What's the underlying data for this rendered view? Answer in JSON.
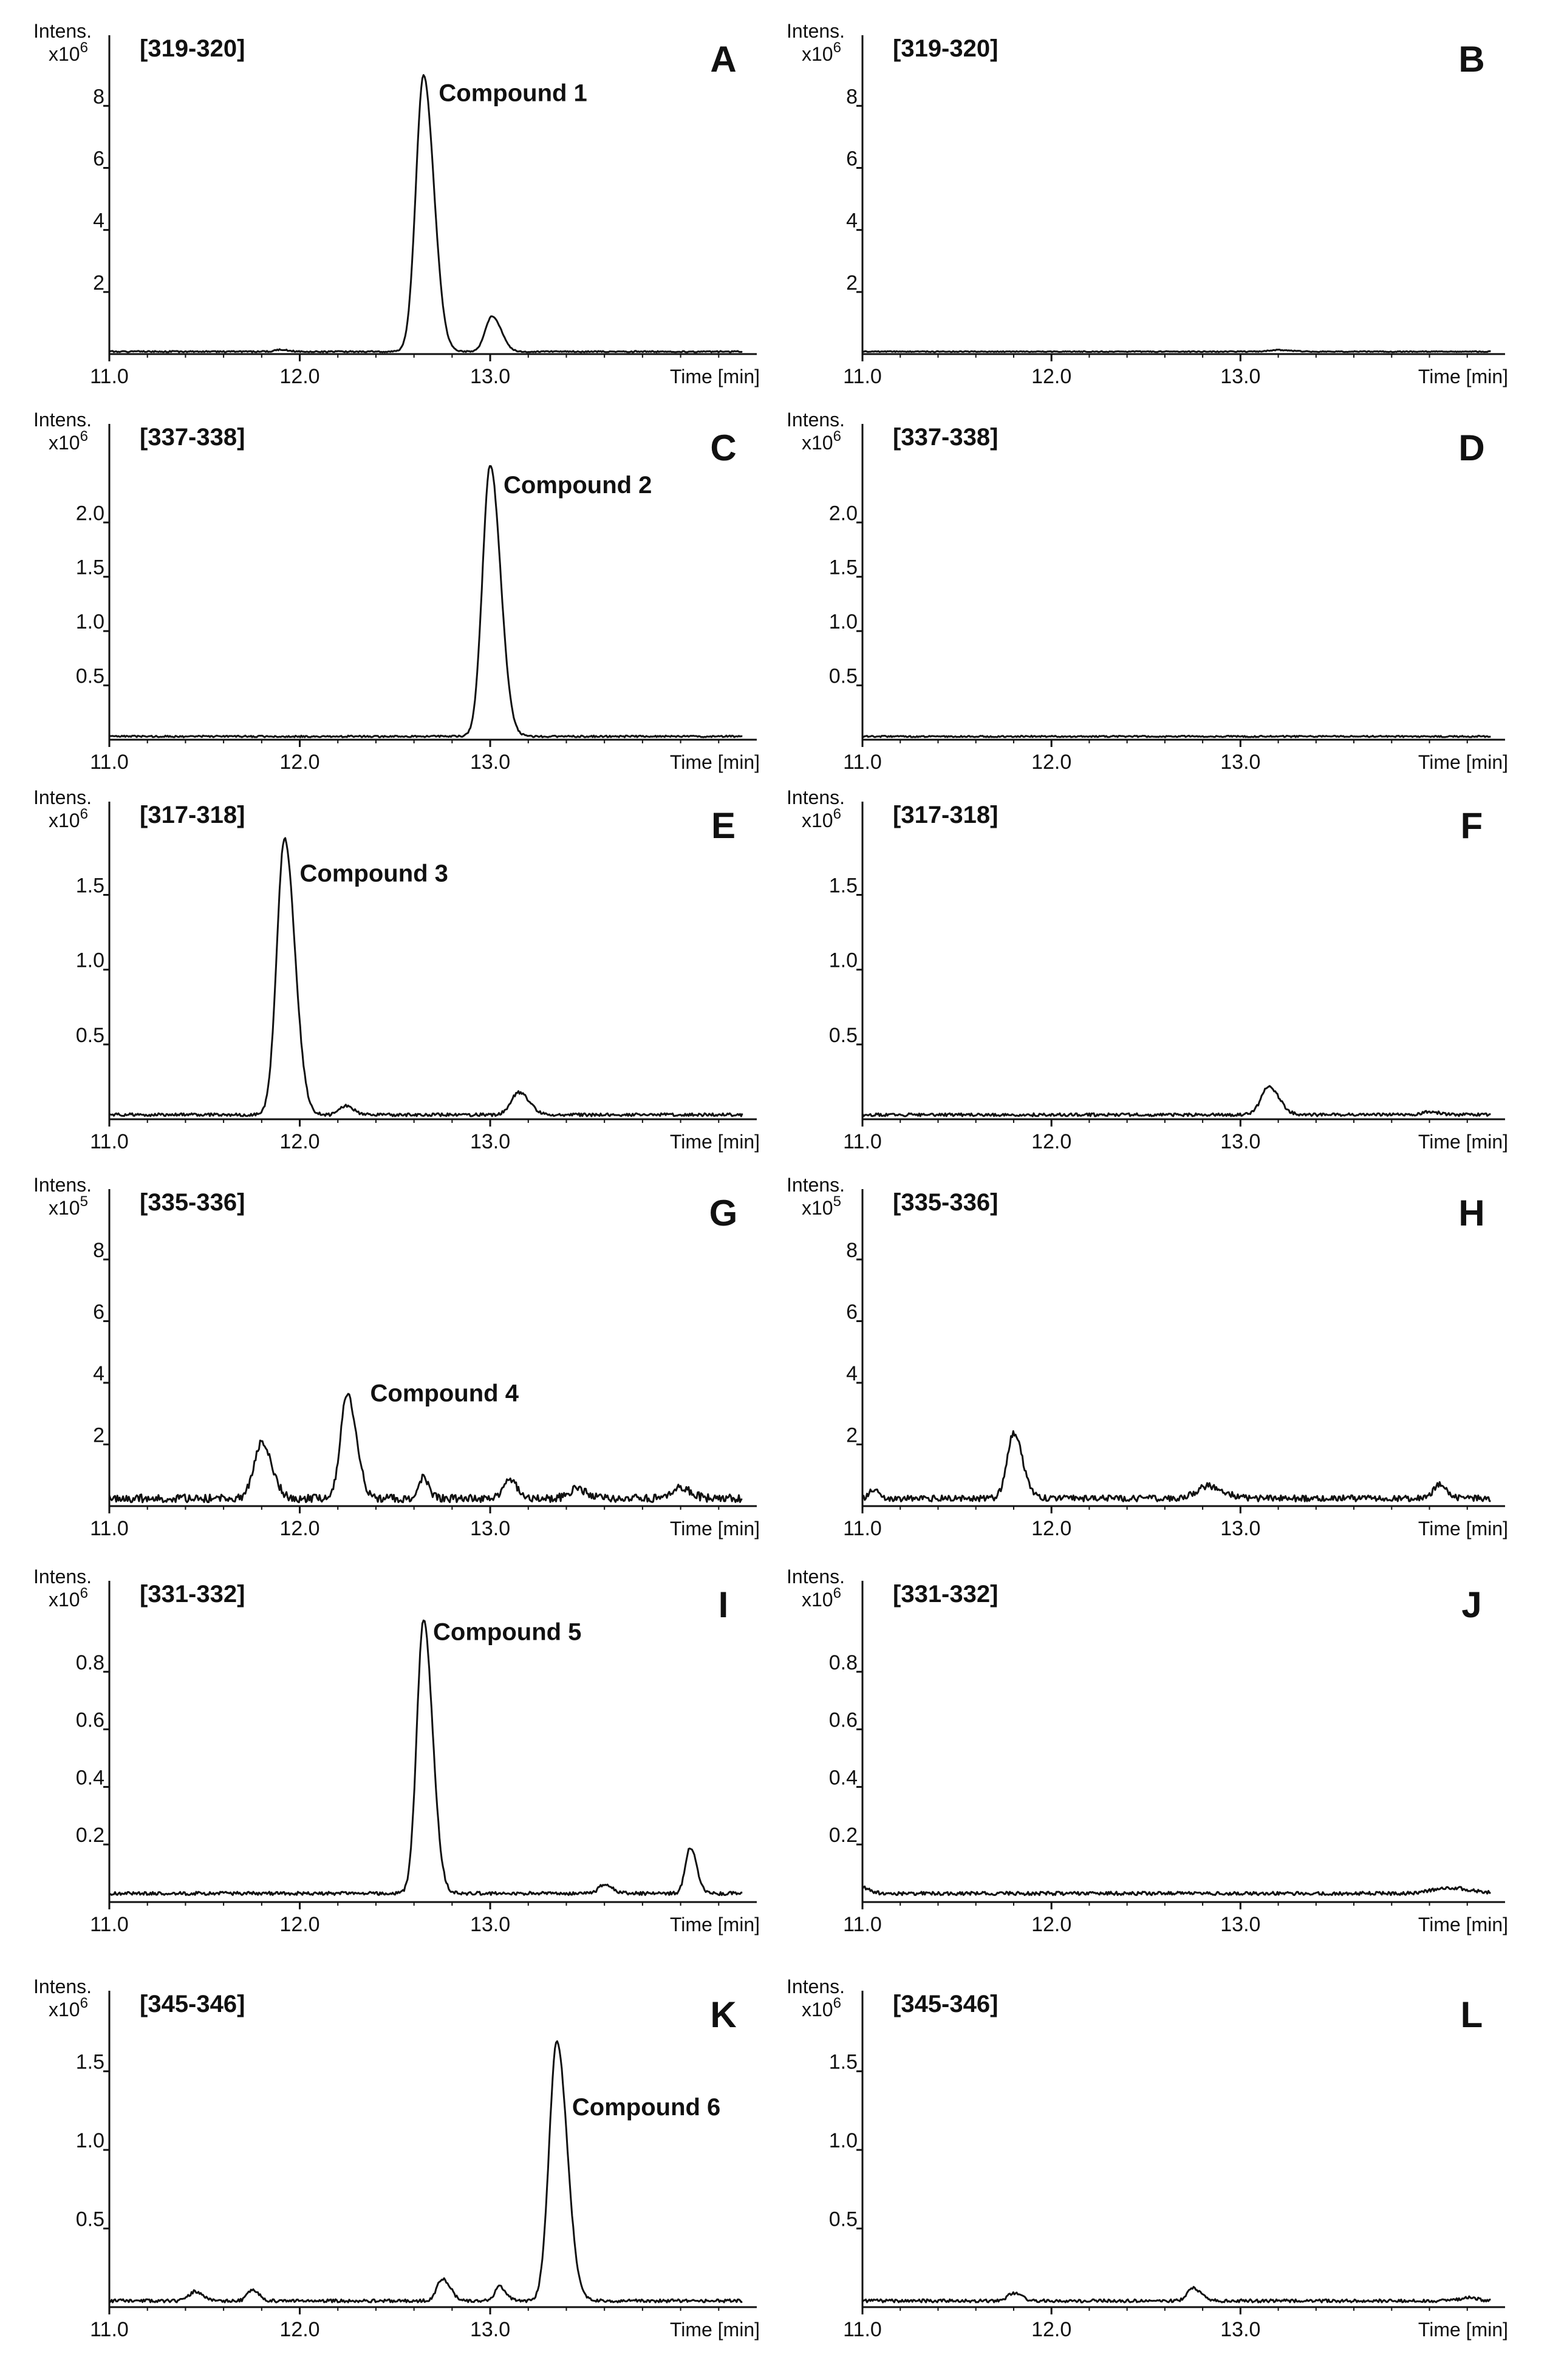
{
  "axis": {
    "intens_label": "Intens.",
    "xlabel": "Time [min]"
  },
  "chart_data": [
    {
      "panel": "A",
      "type": "line",
      "mz_range": "[319-320]",
      "compound_label": "Compound 1",
      "ylabel": "Intens.",
      "yexp_base": "x10",
      "yexp": "6",
      "xlabel": "Time [min]",
      "xlim": [
        11.0,
        14.4
      ],
      "ylim": [
        0,
        9.2
      ],
      "xticks": [
        11.0,
        12.0,
        13.0
      ],
      "xtick_labels": [
        "11.0",
        "12.0",
        "13.0"
      ],
      "yticks": [
        2,
        4,
        6,
        8
      ],
      "ytick_labels": [
        "2",
        "4",
        "6",
        "8"
      ],
      "baseline": 0.08,
      "noise": 0.02,
      "seed": 1,
      "peaks": [
        {
          "t": 12.65,
          "h": 8.9,
          "w": 0.04
        },
        {
          "t": 13.01,
          "h": 1.15,
          "w": 0.035
        },
        {
          "t": 11.9,
          "h": 0.06,
          "w": 0.03
        }
      ],
      "label_x": 12.73,
      "label_y": 8.15
    },
    {
      "panel": "B",
      "type": "line",
      "mz_range": "[319-320]",
      "compound_label": "",
      "ylabel": "Intens.",
      "yexp_base": "x10",
      "yexp": "6",
      "xlabel": "Time [min]",
      "xlim": [
        11.0,
        14.4
      ],
      "ylim": [
        0,
        9.2
      ],
      "xticks": [
        11.0,
        12.0,
        13.0
      ],
      "xtick_labels": [
        "11.0",
        "12.0",
        "13.0"
      ],
      "yticks": [
        2,
        4,
        6,
        8
      ],
      "ytick_labels": [
        "2",
        "4",
        "6",
        "8"
      ],
      "baseline": 0.08,
      "noise": 0.015,
      "seed": 2,
      "peaks": [
        {
          "t": 13.2,
          "h": 0.05,
          "w": 0.05
        }
      ]
    },
    {
      "panel": "C",
      "type": "line",
      "mz_range": "[337-338]",
      "compound_label": "Compound 2",
      "ylabel": "Intens.",
      "yexp_base": "x10",
      "yexp": "6",
      "xlabel": "Time [min]",
      "xlim": [
        11.0,
        14.4
      ],
      "ylim": [
        0,
        2.6
      ],
      "xticks": [
        11.0,
        12.0,
        13.0
      ],
      "xtick_labels": [
        "11.0",
        "12.0",
        "13.0"
      ],
      "yticks": [
        0.5,
        1.0,
        1.5,
        2.0
      ],
      "ytick_labels": [
        "0.5",
        "1.0",
        "1.5",
        "2.0"
      ],
      "baseline": 0.03,
      "noise": 0.008,
      "seed": 3,
      "peaks": [
        {
          "t": 13.0,
          "h": 2.5,
          "w": 0.04
        }
      ],
      "label_x": 13.07,
      "label_y": 2.27
    },
    {
      "panel": "D",
      "type": "line",
      "mz_range": "[337-338]",
      "compound_label": "",
      "ylabel": "Intens.",
      "yexp_base": "x10",
      "yexp": "6",
      "xlabel": "Time [min]",
      "xlim": [
        11.0,
        14.4
      ],
      "ylim": [
        0,
        2.6
      ],
      "xticks": [
        11.0,
        12.0,
        13.0
      ],
      "xtick_labels": [
        "11.0",
        "12.0",
        "13.0"
      ],
      "yticks": [
        0.5,
        1.0,
        1.5,
        2.0
      ],
      "ytick_labels": [
        "0.5",
        "1.0",
        "1.5",
        "2.0"
      ],
      "baseline": 0.03,
      "noise": 0.007,
      "seed": 4,
      "peaks": []
    },
    {
      "panel": "E",
      "type": "line",
      "mz_range": "[317-318]",
      "compound_label": "Compound 3",
      "ylabel": "Intens.",
      "yexp_base": "x10",
      "yexp": "6",
      "xlabel": "Time [min]",
      "xlim": [
        11.0,
        14.4
      ],
      "ylim": [
        0,
        1.9
      ],
      "xticks": [
        11.0,
        12.0,
        13.0
      ],
      "xtick_labels": [
        "11.0",
        "12.0",
        "13.0"
      ],
      "yticks": [
        0.5,
        1.0,
        1.5
      ],
      "ytick_labels": [
        "0.5",
        "1.0",
        "1.5"
      ],
      "baseline": 0.03,
      "noise": 0.01,
      "seed": 5,
      "peaks": [
        {
          "t": 11.92,
          "h": 1.85,
          "w": 0.04
        },
        {
          "t": 12.24,
          "h": 0.06,
          "w": 0.03
        },
        {
          "t": 13.15,
          "h": 0.15,
          "w": 0.04
        }
      ],
      "label_x": 12.0,
      "label_y": 1.59
    },
    {
      "panel": "F",
      "type": "line",
      "mz_range": "[317-318]",
      "compound_label": "",
      "ylabel": "Intens.",
      "yexp_base": "x10",
      "yexp": "6",
      "xlabel": "Time [min]",
      "xlim": [
        11.0,
        14.4
      ],
      "ylim": [
        0,
        1.9
      ],
      "xticks": [
        11.0,
        12.0,
        13.0
      ],
      "xtick_labels": [
        "11.0",
        "12.0",
        "13.0"
      ],
      "yticks": [
        0.5,
        1.0,
        1.5
      ],
      "ytick_labels": [
        "0.5",
        "1.0",
        "1.5"
      ],
      "baseline": 0.03,
      "noise": 0.01,
      "seed": 6,
      "peaks": [
        {
          "t": 13.15,
          "h": 0.19,
          "w": 0.04
        },
        {
          "t": 14.0,
          "h": 0.02,
          "w": 0.04
        }
      ]
    },
    {
      "panel": "G",
      "type": "line",
      "mz_range": "[335-336]",
      "compound_label": "Compound 4",
      "ylabel": "Intens.",
      "yexp_base": "x10",
      "yexp": "5",
      "xlabel": "Time [min]",
      "xlim": [
        11.0,
        14.4
      ],
      "ylim": [
        0,
        9.2
      ],
      "xticks": [
        11.0,
        12.0,
        13.0
      ],
      "xtick_labels": [
        "11.0",
        "12.0",
        "13.0"
      ],
      "yticks": [
        2,
        4,
        6,
        8
      ],
      "ytick_labels": [
        "2",
        "4",
        "6",
        "8"
      ],
      "baseline": 0.25,
      "noise": 0.13,
      "seed": 7,
      "peaks": [
        {
          "t": 11.8,
          "h": 1.8,
          "w": 0.04
        },
        {
          "t": 12.25,
          "h": 3.4,
          "w": 0.035
        },
        {
          "t": 12.65,
          "h": 0.7,
          "w": 0.02
        },
        {
          "t": 13.1,
          "h": 0.6,
          "w": 0.03
        },
        {
          "t": 13.45,
          "h": 0.3,
          "w": 0.04
        },
        {
          "t": 14.0,
          "h": 0.35,
          "w": 0.04
        }
      ],
      "label_x": 12.37,
      "label_y": 3.4
    },
    {
      "panel": "H",
      "type": "line",
      "mz_range": "[335-336]",
      "compound_label": "",
      "ylabel": "Intens.",
      "yexp_base": "x10",
      "yexp": "5",
      "xlabel": "Time [min]",
      "xlim": [
        11.0,
        14.4
      ],
      "ylim": [
        0,
        9.2
      ],
      "xticks": [
        11.0,
        12.0,
        13.0
      ],
      "xtick_labels": [
        "11.0",
        "12.0",
        "13.0"
      ],
      "yticks": [
        2,
        4,
        6,
        8
      ],
      "ytick_labels": [
        "2",
        "4",
        "6",
        "8"
      ],
      "baseline": 0.25,
      "noise": 0.1,
      "seed": 8,
      "peaks": [
        {
          "t": 11.8,
          "h": 2.1,
          "w": 0.035
        },
        {
          "t": 11.06,
          "h": 0.3,
          "w": 0.02
        },
        {
          "t": 12.83,
          "h": 0.4,
          "w": 0.06
        },
        {
          "t": 14.05,
          "h": 0.45,
          "w": 0.03
        }
      ]
    },
    {
      "panel": "I",
      "type": "line",
      "mz_range": "[331-332]",
      "compound_label": "Compound 5",
      "ylabel": "Intens.",
      "yexp_base": "x10",
      "yexp": "6",
      "xlabel": "Time [min]",
      "xlim": [
        11.0,
        14.4
      ],
      "ylim": [
        0,
        1.0
      ],
      "xticks": [
        11.0,
        12.0,
        13.0
      ],
      "xtick_labels": [
        "11.0",
        "12.0",
        "13.0"
      ],
      "yticks": [
        0.2,
        0.4,
        0.6,
        0.8
      ],
      "ytick_labels": [
        "0.2",
        "0.4",
        "0.6",
        "0.8"
      ],
      "baseline": 0.03,
      "noise": 0.006,
      "seed": 9,
      "peaks": [
        {
          "t": 12.65,
          "h": 0.95,
          "w": 0.035
        },
        {
          "t": 13.6,
          "h": 0.03,
          "w": 0.03
        },
        {
          "t": 14.05,
          "h": 0.16,
          "w": 0.025
        }
      ],
      "label_x": 12.7,
      "label_y": 0.91
    },
    {
      "panel": "J",
      "type": "line",
      "mz_range": "[331-332]",
      "compound_label": "",
      "ylabel": "Intens.",
      "yexp_base": "x10",
      "yexp": "6",
      "xlabel": "Time [min]",
      "xlim": [
        11.0,
        14.4
      ],
      "ylim": [
        0,
        1.0
      ],
      "xticks": [
        11.0,
        12.0,
        13.0
      ],
      "xtick_labels": [
        "11.0",
        "12.0",
        "13.0"
      ],
      "yticks": [
        0.2,
        0.4,
        0.6,
        0.8
      ],
      "ytick_labels": [
        "0.2",
        "0.4",
        "0.6",
        "0.8"
      ],
      "baseline": 0.03,
      "noise": 0.006,
      "seed": 10,
      "peaks": [
        {
          "t": 11.0,
          "h": 0.02,
          "w": 0.03
        },
        {
          "t": 14.1,
          "h": 0.02,
          "w": 0.08
        }
      ]
    },
    {
      "panel": "K",
      "type": "line",
      "mz_range": "[345-346]",
      "compound_label": "Compound 6",
      "ylabel": "Intens.",
      "yexp_base": "x10",
      "yexp": "6",
      "xlabel": "Time [min]",
      "xlim": [
        11.0,
        14.4
      ],
      "ylim": [
        0,
        1.8
      ],
      "xticks": [
        11.0,
        12.0,
        13.0
      ],
      "xtick_labels": [
        "11.0",
        "12.0",
        "13.0"
      ],
      "yticks": [
        0.5,
        1.0,
        1.5
      ],
      "ytick_labels": [
        "0.5",
        "1.0",
        "1.5"
      ],
      "baseline": 0.04,
      "noise": 0.01,
      "seed": 11,
      "peaks": [
        {
          "t": 13.35,
          "h": 1.65,
          "w": 0.04
        },
        {
          "t": 12.75,
          "h": 0.14,
          "w": 0.03
        },
        {
          "t": 13.05,
          "h": 0.09,
          "w": 0.025
        },
        {
          "t": 11.45,
          "h": 0.06,
          "w": 0.03
        },
        {
          "t": 11.75,
          "h": 0.07,
          "w": 0.025
        }
      ],
      "label_x": 13.43,
      "label_y": 1.22
    },
    {
      "panel": "L",
      "type": "line",
      "mz_range": "[345-346]",
      "compound_label": "",
      "ylabel": "Intens.",
      "yexp_base": "x10",
      "yexp": "6",
      "xlabel": "Time [min]",
      "xlim": [
        11.0,
        14.4
      ],
      "ylim": [
        0,
        1.8
      ],
      "xticks": [
        11.0,
        12.0,
        13.0
      ],
      "xtick_labels": [
        "11.0",
        "12.0",
        "13.0"
      ],
      "yticks": [
        0.5,
        1.0,
        1.5
      ],
      "ytick_labels": [
        "0.5",
        "1.0",
        "1.5"
      ],
      "baseline": 0.04,
      "noise": 0.01,
      "seed": 12,
      "peaks": [
        {
          "t": 11.8,
          "h": 0.05,
          "w": 0.03
        },
        {
          "t": 12.75,
          "h": 0.08,
          "w": 0.03
        },
        {
          "t": 14.2,
          "h": 0.02,
          "w": 0.04
        }
      ]
    }
  ]
}
